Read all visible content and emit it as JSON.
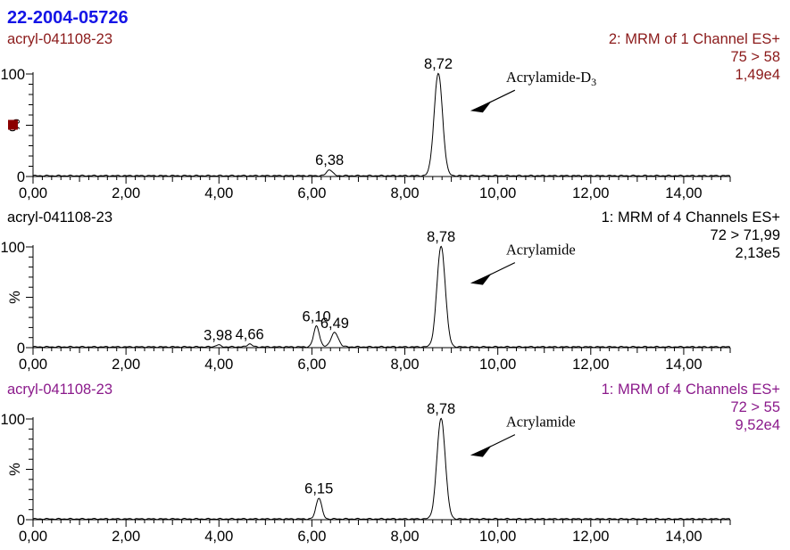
{
  "header": {
    "title": "22-2004-05726",
    "title_color": "#1515e6"
  },
  "chart_data": [
    {
      "type": "line",
      "sample": "acryl-041108-23",
      "function": "2: MRM of 1 Channel ES+",
      "transition": "75 > 58",
      "intensity": "1,49e4",
      "text_color": "#8b1a1a",
      "ylabel": "%",
      "xlim": [
        0,
        15
      ],
      "ylim": [
        0,
        100
      ],
      "xticks": [
        "0,00",
        "2,00",
        "4,00",
        "6,00",
        "8,00",
        "10,00",
        "12,00",
        "14,00"
      ],
      "yticks": [
        "0",
        "100"
      ],
      "peaks": [
        {
          "rt": 8.72,
          "label": "8,72",
          "height": 100,
          "width": 0.09
        },
        {
          "rt": 6.38,
          "label": "6,38",
          "height": 6,
          "width": 0.06
        }
      ],
      "annotation": {
        "text": "Acrylamide-D",
        "subscript": "3",
        "x": 9.6,
        "y": 72
      }
    },
    {
      "type": "line",
      "sample": "acryl-041108-23",
      "function": "1: MRM of 4 Channels ES+",
      "transition": "72 > 71,99",
      "intensity": "2,13e5",
      "text_color": "#000000",
      "ylabel": "%",
      "xlim": [
        0,
        15
      ],
      "ylim": [
        0,
        100
      ],
      "xticks": [
        "0,00",
        "2,00",
        "4,00",
        "6,00",
        "8,00",
        "10,00",
        "12,00",
        "14,00"
      ],
      "yticks": [
        "0",
        "100"
      ],
      "peaks": [
        {
          "rt": 8.78,
          "label": "8,78",
          "height": 100,
          "width": 0.09
        },
        {
          "rt": 6.1,
          "label": "6,10",
          "height": 21,
          "width": 0.06
        },
        {
          "rt": 6.49,
          "label": "6,49",
          "height": 14,
          "width": 0.08
        },
        {
          "rt": 4.66,
          "label": "4,66",
          "height": 3,
          "width": 0.05
        },
        {
          "rt": 3.98,
          "label": "3,98",
          "height": 2,
          "width": 0.05
        }
      ],
      "annotation": {
        "text": "Acrylamide",
        "subscript": "",
        "x": 9.6,
        "y": 72
      }
    },
    {
      "type": "line",
      "sample": "acryl-041108-23",
      "function": "1: MRM of 4 Channels ES+",
      "transition": "72 > 55",
      "intensity": "9,52e4",
      "text_color": "#8b1a8b",
      "ylabel": "%",
      "xlim": [
        0,
        15
      ],
      "ylim": [
        0,
        100
      ],
      "xticks": [
        "0,00",
        "2,00",
        "4,00",
        "6,00",
        "8,00",
        "10,00",
        "12,00",
        "14,00"
      ],
      "yticks": [
        "0",
        "100"
      ],
      "peaks": [
        {
          "rt": 8.78,
          "label": "8,78",
          "height": 100,
          "width": 0.09
        },
        {
          "rt": 6.15,
          "label": "6,15",
          "height": 21,
          "width": 0.06
        }
      ],
      "annotation": {
        "text": "Acrylamide",
        "subscript": "",
        "x": 9.6,
        "y": 72
      }
    }
  ]
}
